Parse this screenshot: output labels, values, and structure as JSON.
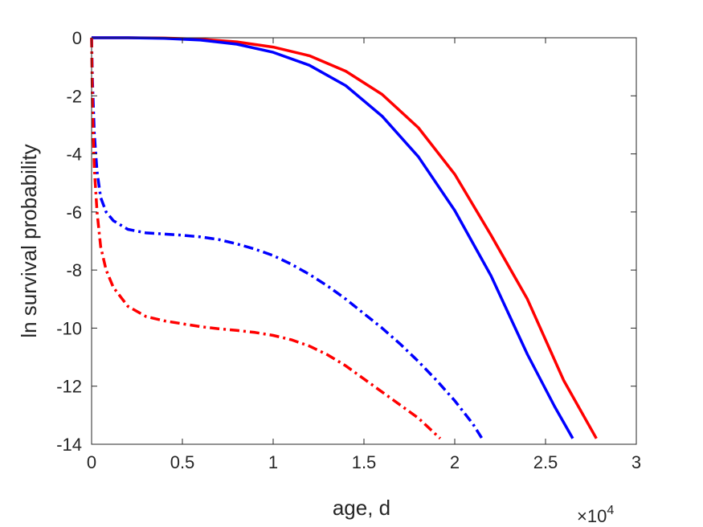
{
  "chart_data": {
    "type": "line",
    "xlabel": "age, d",
    "ylabel": "ln survival probability",
    "x_exponent_label": "×10",
    "x_exponent_power": "4",
    "xlim": [
      0,
      30000
    ],
    "ylim": [
      -14,
      0
    ],
    "x_ticks": [
      0,
      5000,
      10000,
      15000,
      20000,
      25000,
      30000
    ],
    "x_tick_labels": [
      "0",
      "0.5",
      "1",
      "1.5",
      "2",
      "2.5",
      "3"
    ],
    "y_ticks": [
      0,
      -2,
      -4,
      -6,
      -8,
      -10,
      -12,
      -14
    ],
    "y_tick_labels": [
      "0",
      "-2",
      "-4",
      "-6",
      "-8",
      "-10",
      "-12",
      "-14"
    ],
    "grid": false,
    "series": [
      {
        "color": "#ff0000",
        "style": "solid",
        "x": [
          0,
          2000,
          4000,
          6000,
          8000,
          10000,
          12000,
          14000,
          16000,
          18000,
          20000,
          22000,
          24000,
          26000,
          27800
        ],
        "y": [
          0,
          0,
          -0.01,
          -0.05,
          -0.14,
          -0.32,
          -0.62,
          -1.15,
          -1.95,
          -3.1,
          -4.7,
          -6.8,
          -9.0,
          -11.8,
          -13.8
        ]
      },
      {
        "color": "#0000ff",
        "style": "solid",
        "x": [
          0,
          2000,
          4000,
          6000,
          8000,
          10000,
          12000,
          14000,
          16000,
          18000,
          20000,
          22000,
          24000,
          25500,
          26500
        ],
        "y": [
          0,
          0,
          -0.02,
          -0.08,
          -0.22,
          -0.5,
          -0.95,
          -1.65,
          -2.7,
          -4.1,
          -5.95,
          -8.2,
          -10.9,
          -12.7,
          -13.8
        ]
      },
      {
        "color": "#0000ff",
        "style": "dashdot",
        "x": [
          0,
          50,
          150,
          300,
          500,
          800,
          1200,
          2000,
          3000,
          4000,
          5000,
          6000,
          7000,
          8000,
          9000,
          10000,
          11000,
          12000,
          13000,
          14000,
          15000,
          16000,
          17000,
          18000,
          19000,
          20000,
          21000,
          21500
        ],
        "y": [
          0,
          -1.5,
          -3.3,
          -4.6,
          -5.5,
          -6.0,
          -6.3,
          -6.6,
          -6.72,
          -6.76,
          -6.8,
          -6.86,
          -6.95,
          -7.1,
          -7.28,
          -7.5,
          -7.8,
          -8.15,
          -8.55,
          -9.0,
          -9.5,
          -10.0,
          -10.55,
          -11.15,
          -11.8,
          -12.5,
          -13.3,
          -13.8
        ]
      },
      {
        "color": "#ff0000",
        "style": "dashdot",
        "x": [
          0,
          50,
          150,
          300,
          500,
          800,
          1200,
          2000,
          3000,
          4000,
          5000,
          6000,
          7000,
          8000,
          9000,
          10000,
          11000,
          12000,
          13000,
          14000,
          15000,
          16000,
          17000,
          18000,
          19200
        ],
        "y": [
          0,
          -2.5,
          -4.5,
          -6.0,
          -7.2,
          -8.0,
          -8.6,
          -9.25,
          -9.6,
          -9.75,
          -9.85,
          -9.95,
          -10.02,
          -10.08,
          -10.15,
          -10.25,
          -10.4,
          -10.62,
          -10.92,
          -11.3,
          -11.75,
          -12.2,
          -12.65,
          -13.1,
          -13.8
        ]
      }
    ]
  }
}
